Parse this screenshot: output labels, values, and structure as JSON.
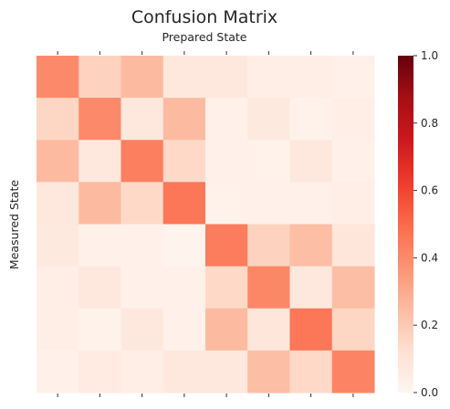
{
  "chart_data": {
    "type": "heatmap",
    "title": "Confusion Matrix",
    "xlabel": "Prepared State",
    "ylabel": "Measured State",
    "rows": 8,
    "cols": 8,
    "values": [
      [
        0.4,
        0.17,
        0.25,
        0.08,
        0.08,
        0.04,
        0.04,
        0.03
      ],
      [
        0.16,
        0.4,
        0.08,
        0.25,
        0.03,
        0.07,
        0.02,
        0.04
      ],
      [
        0.25,
        0.08,
        0.43,
        0.15,
        0.03,
        0.02,
        0.08,
        0.03
      ],
      [
        0.08,
        0.25,
        0.15,
        0.46,
        0.02,
        0.03,
        0.03,
        0.04
      ],
      [
        0.07,
        0.03,
        0.03,
        0.01,
        0.44,
        0.17,
        0.24,
        0.09
      ],
      [
        0.04,
        0.08,
        0.03,
        0.03,
        0.15,
        0.41,
        0.08,
        0.24
      ],
      [
        0.04,
        0.02,
        0.08,
        0.03,
        0.25,
        0.09,
        0.46,
        0.16
      ],
      [
        0.03,
        0.06,
        0.04,
        0.08,
        0.08,
        0.24,
        0.15,
        0.42
      ]
    ],
    "colorbar": {
      "min": 0.0,
      "max": 1.0,
      "ticks": [
        "0.0",
        "0.2",
        "0.4",
        "0.6",
        "0.8",
        "1.0"
      ],
      "colormap": "Reds"
    },
    "grid": false
  }
}
